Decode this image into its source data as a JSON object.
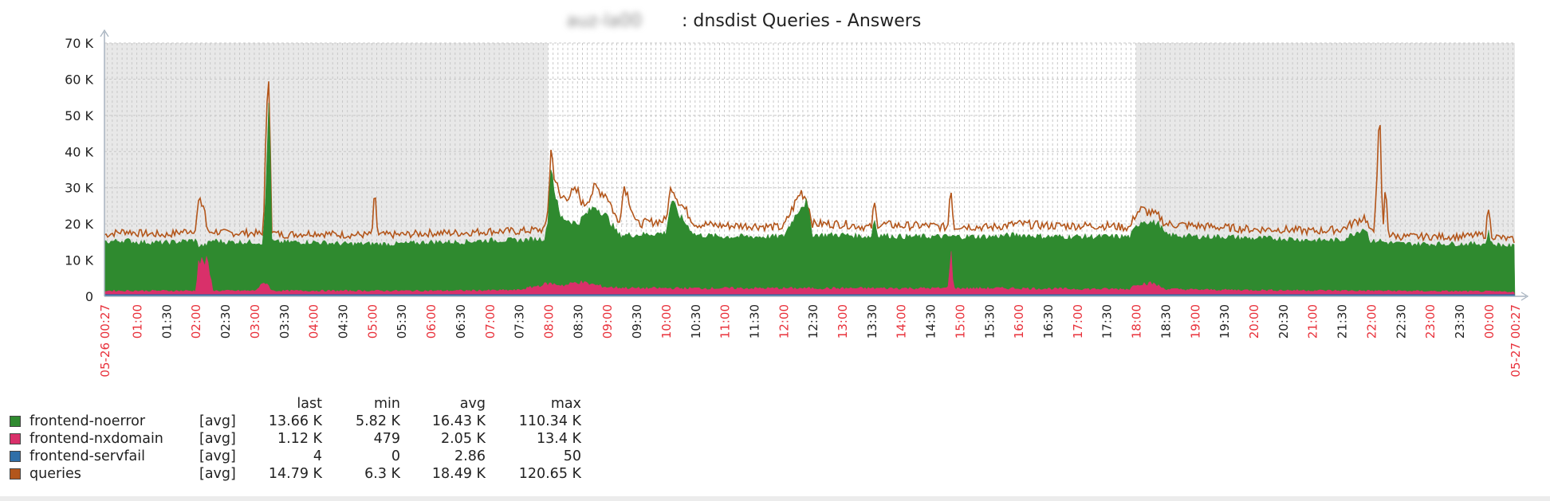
{
  "chart_data": {
    "type": "area",
    "title_host": "auz-la00",
    "title": ": dnsdist Queries - Answers",
    "ylim": [
      0,
      70000
    ],
    "y_ticks": [
      {
        "v": 0,
        "label": "0"
      },
      {
        "v": 10000,
        "label": "10 K"
      },
      {
        "v": 20000,
        "label": "20 K"
      },
      {
        "v": 30000,
        "label": "30 K"
      },
      {
        "v": 40000,
        "label": "40 K"
      },
      {
        "v": 50000,
        "label": "50 K"
      },
      {
        "v": 60000,
        "label": "60 K"
      },
      {
        "v": 70000,
        "label": "70 K"
      }
    ],
    "x_range_hours": [
      0.45,
      24.45
    ],
    "x_ticks": [
      {
        "h": 0.45,
        "label": "05-26 00:27",
        "red": true
      },
      {
        "h": 1.0,
        "label": "01:00",
        "red": true
      },
      {
        "h": 1.5,
        "label": "01:30",
        "red": false
      },
      {
        "h": 2.0,
        "label": "02:00",
        "red": true
      },
      {
        "h": 2.5,
        "label": "02:30",
        "red": false
      },
      {
        "h": 3.0,
        "label": "03:00",
        "red": true
      },
      {
        "h": 3.5,
        "label": "03:30",
        "red": false
      },
      {
        "h": 4.0,
        "label": "04:00",
        "red": true
      },
      {
        "h": 4.5,
        "label": "04:30",
        "red": false
      },
      {
        "h": 5.0,
        "label": "05:00",
        "red": true
      },
      {
        "h": 5.5,
        "label": "05:30",
        "red": false
      },
      {
        "h": 6.0,
        "label": "06:00",
        "red": true
      },
      {
        "h": 6.5,
        "label": "06:30",
        "red": false
      },
      {
        "h": 7.0,
        "label": "07:00",
        "red": true
      },
      {
        "h": 7.5,
        "label": "07:30",
        "red": false
      },
      {
        "h": 8.0,
        "label": "08:00",
        "red": true
      },
      {
        "h": 8.5,
        "label": "08:30",
        "red": false
      },
      {
        "h": 9.0,
        "label": "09:00",
        "red": true
      },
      {
        "h": 9.5,
        "label": "09:30",
        "red": false
      },
      {
        "h": 10.0,
        "label": "10:00",
        "red": true
      },
      {
        "h": 10.5,
        "label": "10:30",
        "red": false
      },
      {
        "h": 11.0,
        "label": "11:00",
        "red": true
      },
      {
        "h": 11.5,
        "label": "11:30",
        "red": false
      },
      {
        "h": 12.0,
        "label": "12:00",
        "red": true
      },
      {
        "h": 12.5,
        "label": "12:30",
        "red": false
      },
      {
        "h": 13.0,
        "label": "13:00",
        "red": true
      },
      {
        "h": 13.5,
        "label": "13:30",
        "red": false
      },
      {
        "h": 14.0,
        "label": "14:00",
        "red": true
      },
      {
        "h": 14.5,
        "label": "14:30",
        "red": false
      },
      {
        "h": 15.0,
        "label": "15:00",
        "red": true
      },
      {
        "h": 15.5,
        "label": "15:30",
        "red": false
      },
      {
        "h": 16.0,
        "label": "16:00",
        "red": true
      },
      {
        "h": 16.5,
        "label": "16:30",
        "red": false
      },
      {
        "h": 17.0,
        "label": "17:00",
        "red": true
      },
      {
        "h": 17.5,
        "label": "17:30",
        "red": false
      },
      {
        "h": 18.0,
        "label": "18:00",
        "red": true
      },
      {
        "h": 18.5,
        "label": "18:30",
        "red": false
      },
      {
        "h": 19.0,
        "label": "19:00",
        "red": true
      },
      {
        "h": 19.5,
        "label": "19:30",
        "red": false
      },
      {
        "h": 20.0,
        "label": "20:00",
        "red": true
      },
      {
        "h": 20.5,
        "label": "20:30",
        "red": false
      },
      {
        "h": 21.0,
        "label": "21:00",
        "red": true
      },
      {
        "h": 21.5,
        "label": "21:30",
        "red": false
      },
      {
        "h": 22.0,
        "label": "22:00",
        "red": true
      },
      {
        "h": 22.5,
        "label": "22:30",
        "red": false
      },
      {
        "h": 23.0,
        "label": "23:00",
        "red": true
      },
      {
        "h": 23.5,
        "label": "23:30",
        "red": false
      },
      {
        "h": 24.0,
        "label": "00:00",
        "red": true
      },
      {
        "h": 24.45,
        "label": "05-27 00:27",
        "red": true
      }
    ],
    "nonworking_shading_hours": [
      [
        0.45,
        8.0
      ],
      [
        18.0,
        24.45
      ]
    ],
    "colors": {
      "noerror": "#2f8a2f",
      "nxdomain": "#d9306a",
      "servfail": "#2f6fa8",
      "queries": "#b3561b",
      "shade": "#e8e8e8",
      "grid": "#c8c8c8",
      "tick_red": "#e8303a",
      "tick_black": "#222222"
    },
    "series": [
      {
        "name": "queries",
        "key": "queries",
        "x": [
          0.45,
          0.8,
          1.0,
          1.5,
          2.0,
          2.05,
          2.15,
          2.2,
          2.3,
          2.5,
          3.0,
          3.15,
          3.2,
          3.25,
          3.3,
          3.5,
          4.0,
          4.5,
          5.0,
          5.05,
          5.1,
          5.5,
          6.0,
          6.5,
          7.0,
          7.5,
          7.95,
          8.0,
          8.05,
          8.1,
          8.2,
          8.5,
          8.6,
          8.8,
          9.0,
          9.2,
          9.3,
          9.5,
          10.0,
          10.1,
          10.2,
          10.5,
          11.0,
          11.5,
          12.0,
          12.3,
          12.4,
          12.5,
          13.0,
          13.5,
          13.55,
          13.6,
          14.0,
          14.5,
          14.8,
          14.85,
          14.9,
          15.0,
          15.5,
          16.0,
          16.5,
          17.0,
          17.5,
          17.9,
          18.0,
          18.1,
          18.4,
          18.5,
          19.0,
          19.5,
          20.0,
          20.5,
          21.0,
          21.5,
          21.9,
          22.0,
          22.05,
          22.15,
          22.2,
          22.25,
          22.3,
          22.5,
          23.0,
          23.5,
          23.95,
          24.0,
          24.05,
          24.1,
          24.45
        ],
        "values": [
          17000,
          18000,
          17500,
          17000,
          18500,
          26000,
          25000,
          17500,
          18000,
          17500,
          17500,
          17000,
          45000,
          63000,
          17500,
          17000,
          17500,
          17000,
          17000,
          29000,
          17000,
          17000,
          17500,
          17500,
          18000,
          18000,
          18500,
          25000,
          41000,
          34000,
          27000,
          29000,
          25000,
          30000,
          28000,
          20000,
          31000,
          20000,
          21000,
          31000,
          27000,
          20000,
          19500,
          19500,
          19000,
          29000,
          27000,
          20000,
          20000,
          19000,
          26000,
          20000,
          19500,
          19500,
          19000,
          32000,
          19000,
          19500,
          19000,
          20000,
          19500,
          19500,
          19500,
          19000,
          23000,
          24000,
          22000,
          20000,
          19500,
          19000,
          18500,
          18500,
          18000,
          18500,
          22000,
          17500,
          18000,
          50000,
          17000,
          31000,
          17000,
          16500,
          16500,
          16500,
          17000,
          25000,
          17000,
          16500,
          15500
        ]
      },
      {
        "name": "frontend-noerror",
        "key": "noerror",
        "x": [
          0.45,
          0.8,
          1.0,
          1.5,
          2.0,
          2.05,
          2.15,
          2.2,
          2.3,
          2.5,
          3.0,
          3.15,
          3.2,
          3.25,
          3.3,
          3.5,
          4.0,
          4.5,
          5.0,
          5.5,
          6.0,
          6.5,
          7.0,
          7.5,
          7.95,
          8.0,
          8.05,
          8.1,
          8.2,
          8.5,
          8.6,
          8.8,
          9.0,
          9.2,
          9.5,
          10.0,
          10.1,
          10.2,
          10.5,
          11.0,
          11.5,
          12.0,
          12.3,
          12.4,
          12.5,
          13.0,
          13.5,
          13.55,
          13.6,
          14.0,
          14.5,
          15.0,
          15.5,
          16.0,
          16.5,
          17.0,
          17.5,
          17.9,
          18.0,
          18.1,
          18.4,
          18.5,
          19.0,
          19.5,
          20.0,
          20.5,
          21.0,
          21.5,
          21.9,
          22.0,
          22.15,
          22.2,
          22.5,
          23.0,
          23.5,
          23.95,
          24.0,
          24.05,
          24.45
        ],
        "values": [
          15000,
          15500,
          15000,
          14800,
          15500,
          14000,
          14000,
          14500,
          15500,
          15000,
          15000,
          14800,
          30000,
          58000,
          15000,
          15000,
          15000,
          14500,
          14500,
          14500,
          15000,
          15000,
          15500,
          15500,
          16000,
          22000,
          37000,
          30000,
          22000,
          20000,
          22000,
          25000,
          22000,
          17000,
          17000,
          17500,
          27000,
          23000,
          17000,
          16500,
          16500,
          16500,
          25000,
          26000,
          17000,
          17000,
          16500,
          22000,
          17000,
          16500,
          16500,
          16500,
          16500,
          17000,
          16500,
          16500,
          16500,
          16500,
          19000,
          21000,
          20000,
          17000,
          16500,
          16500,
          16000,
          16000,
          15500,
          15500,
          19000,
          15000,
          15500,
          15000,
          14500,
          14500,
          14500,
          14500,
          18000,
          14500,
          13800
        ]
      },
      {
        "name": "frontend-nxdomain",
        "key": "nxdomain",
        "x": [
          0.45,
          1.0,
          2.0,
          2.05,
          2.2,
          2.3,
          2.5,
          3.0,
          3.2,
          3.3,
          4.0,
          5.0,
          6.0,
          7.0,
          7.5,
          8.0,
          8.3,
          8.5,
          9.0,
          9.5,
          10.0,
          11.0,
          12.0,
          13.0,
          14.0,
          14.8,
          14.85,
          14.9,
          15.0,
          16.0,
          17.0,
          17.9,
          18.0,
          18.3,
          18.5,
          19.0,
          20.0,
          21.0,
          22.0,
          23.0,
          24.0,
          24.45
        ],
        "values": [
          1500,
          1500,
          1500,
          9500,
          9500,
          1500,
          1500,
          1500,
          4000,
          1500,
          1500,
          1500,
          1500,
          1600,
          1700,
          3500,
          3000,
          4000,
          2500,
          2200,
          2200,
          2200,
          2200,
          2200,
          2200,
          2200,
          13000,
          2200,
          2200,
          2200,
          2000,
          2000,
          3500,
          3500,
          2000,
          1800,
          1700,
          1600,
          1500,
          1400,
          1300,
          1200
        ]
      },
      {
        "name": "frontend-servfail",
        "key": "servfail",
        "x": [
          0.45,
          24.45
        ],
        "values": [
          3,
          4
        ]
      }
    ],
    "legend": {
      "headers": {
        "last": "last",
        "min": "min",
        "avg": "avg",
        "max": "max"
      },
      "rows": [
        {
          "name": "frontend-noerror",
          "fn": "[avg]",
          "last": "13.66 K",
          "min": "5.82 K",
          "avg": "16.43 K",
          "max": "110.34 K",
          "color": "#2f8a2f"
        },
        {
          "name": "frontend-nxdomain",
          "fn": "[avg]",
          "last": "1.12 K",
          "min": "479",
          "avg": "2.05 K",
          "max": "13.4 K",
          "color": "#d9306a"
        },
        {
          "name": "frontend-servfail",
          "fn": "[avg]",
          "last": "4",
          "min": "0",
          "avg": "2.86",
          "max": "50",
          "color": "#2f6fa8"
        },
        {
          "name": "queries",
          "fn": "[avg]",
          "last": "14.79 K",
          "min": "6.3 K",
          "avg": "18.49 K",
          "max": "120.65 K",
          "color": "#b3561b"
        }
      ]
    }
  }
}
